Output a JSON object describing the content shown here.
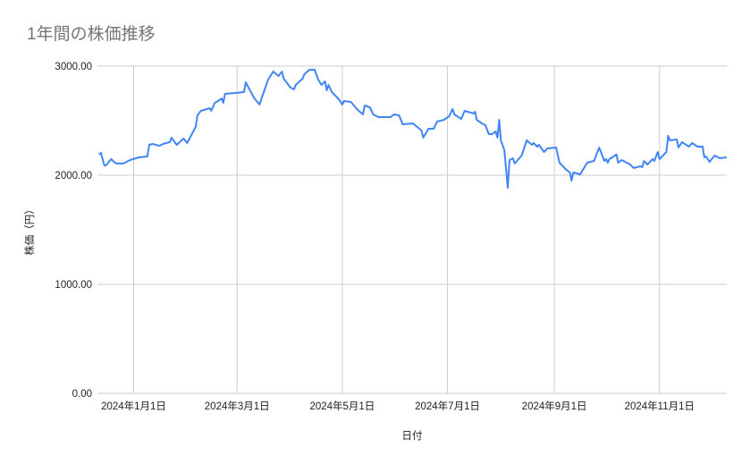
{
  "chart_data": {
    "type": "line",
    "title": "1年間の株価推移",
    "xlabel": "日付",
    "ylabel": "株価（円）",
    "xlim": [
      "2023-12-11",
      "2024-12-10"
    ],
    "ylim": [
      0,
      3000
    ],
    "grid": true,
    "legend": "none",
    "line_color": "#4285f4",
    "y_ticks": [
      {
        "value": 0,
        "label": "0.00"
      },
      {
        "value": 1000,
        "label": "1000.00"
      },
      {
        "value": 2000,
        "label": "2000.00"
      },
      {
        "value": 3000,
        "label": "3000.00"
      }
    ],
    "x_ticks": [
      {
        "value": "2024-01-01",
        "label": "2024年1月1日"
      },
      {
        "value": "2024-03-01",
        "label": "2024年3月1日"
      },
      {
        "value": "2024-05-01",
        "label": "2024年5月1日"
      },
      {
        "value": "2024-07-01",
        "label": "2024年7月1日"
      },
      {
        "value": "2024-09-01",
        "label": "2024年9月1日"
      },
      {
        "value": "2024-11-01",
        "label": "2024年11月1日"
      }
    ],
    "series": [
      {
        "points": [
          [
            "2023-12-12",
            2189
          ],
          [
            "2023-12-13",
            2205
          ],
          [
            "2023-12-15",
            2090
          ],
          [
            "2023-12-16",
            2090
          ],
          [
            "2023-12-19",
            2148
          ],
          [
            "2023-12-20",
            2131
          ],
          [
            "2023-12-22",
            2107
          ],
          [
            "2023-12-26",
            2107
          ],
          [
            "2023-12-27",
            2115
          ],
          [
            "2023-12-30",
            2139
          ],
          [
            "2024-01-04",
            2164
          ],
          [
            "2024-01-09",
            2172
          ],
          [
            "2024-01-10",
            2279
          ],
          [
            "2024-01-12",
            2287
          ],
          [
            "2024-01-16",
            2270
          ],
          [
            "2024-01-18",
            2287
          ],
          [
            "2024-01-22",
            2303
          ],
          [
            "2024-01-23",
            2344
          ],
          [
            "2024-01-26",
            2279
          ],
          [
            "2024-01-30",
            2336
          ],
          [
            "2024-02-01",
            2295
          ],
          [
            "2024-02-06",
            2443
          ],
          [
            "2024-02-07",
            2549
          ],
          [
            "2024-02-09",
            2590
          ],
          [
            "2024-02-14",
            2615
          ],
          [
            "2024-02-15",
            2590
          ],
          [
            "2024-02-17",
            2664
          ],
          [
            "2024-02-19",
            2680
          ],
          [
            "2024-02-21",
            2705
          ],
          [
            "2024-02-22",
            2664
          ],
          [
            "2024-02-23",
            2746
          ],
          [
            "2024-02-29",
            2754
          ],
          [
            "2024-03-05",
            2762
          ],
          [
            "2024-03-06",
            2852
          ],
          [
            "2024-03-11",
            2705
          ],
          [
            "2024-03-14",
            2648
          ],
          [
            "2024-03-17",
            2787
          ],
          [
            "2024-03-19",
            2877
          ],
          [
            "2024-03-22",
            2951
          ],
          [
            "2024-03-25",
            2910
          ],
          [
            "2024-03-27",
            2951
          ],
          [
            "2024-03-28",
            2885
          ],
          [
            "2024-04-01",
            2803
          ],
          [
            "2024-04-03",
            2787
          ],
          [
            "2024-04-04",
            2828
          ],
          [
            "2024-04-08",
            2885
          ],
          [
            "2024-04-09",
            2926
          ],
          [
            "2024-04-12",
            2967
          ],
          [
            "2024-04-15",
            2967
          ],
          [
            "2024-04-17",
            2877
          ],
          [
            "2024-04-19",
            2828
          ],
          [
            "2024-04-21",
            2861
          ],
          [
            "2024-04-22",
            2779
          ],
          [
            "2024-04-23",
            2828
          ],
          [
            "2024-04-25",
            2762
          ],
          [
            "2024-04-29",
            2697
          ],
          [
            "2024-05-01",
            2648
          ],
          [
            "2024-05-02",
            2680
          ],
          [
            "2024-05-06",
            2672
          ],
          [
            "2024-05-10",
            2598
          ],
          [
            "2024-05-13",
            2557
          ],
          [
            "2024-05-14",
            2639
          ],
          [
            "2024-05-17",
            2623
          ],
          [
            "2024-05-19",
            2557
          ],
          [
            "2024-05-22",
            2533
          ],
          [
            "2024-05-29",
            2533
          ],
          [
            "2024-05-31",
            2557
          ],
          [
            "2024-06-03",
            2549
          ],
          [
            "2024-06-05",
            2467
          ],
          [
            "2024-06-11",
            2475
          ],
          [
            "2024-06-16",
            2410
          ],
          [
            "2024-06-17",
            2344
          ],
          [
            "2024-06-20",
            2426
          ],
          [
            "2024-06-23",
            2426
          ],
          [
            "2024-06-25",
            2492
          ],
          [
            "2024-06-29",
            2508
          ],
          [
            "2024-07-02",
            2541
          ],
          [
            "2024-07-04",
            2607
          ],
          [
            "2024-07-05",
            2557
          ],
          [
            "2024-07-09",
            2516
          ],
          [
            "2024-07-11",
            2590
          ],
          [
            "2024-07-16",
            2566
          ],
          [
            "2024-07-17",
            2582
          ],
          [
            "2024-07-18",
            2508
          ],
          [
            "2024-07-21",
            2475
          ],
          [
            "2024-07-23",
            2459
          ],
          [
            "2024-07-25",
            2377
          ],
          [
            "2024-07-27",
            2377
          ],
          [
            "2024-07-29",
            2402
          ],
          [
            "2024-07-30",
            2344
          ],
          [
            "2024-07-31",
            2508
          ],
          [
            "2024-08-01",
            2320
          ],
          [
            "2024-08-03",
            2230
          ],
          [
            "2024-08-05",
            1885
          ],
          [
            "2024-08-06",
            2139
          ],
          [
            "2024-08-08",
            2156
          ],
          [
            "2024-08-09",
            2107
          ],
          [
            "2024-08-13",
            2180
          ],
          [
            "2024-08-16",
            2320
          ],
          [
            "2024-08-19",
            2279
          ],
          [
            "2024-08-20",
            2295
          ],
          [
            "2024-08-22",
            2262
          ],
          [
            "2024-08-23",
            2279
          ],
          [
            "2024-08-26",
            2213
          ],
          [
            "2024-08-28",
            2246
          ],
          [
            "2024-09-02",
            2254
          ],
          [
            "2024-09-04",
            2115
          ],
          [
            "2024-09-08",
            2049
          ],
          [
            "2024-09-10",
            2025
          ],
          [
            "2024-09-11",
            1951
          ],
          [
            "2024-09-12",
            2025
          ],
          [
            "2024-09-16",
            2008
          ],
          [
            "2024-09-20",
            2115
          ],
          [
            "2024-09-24",
            2131
          ],
          [
            "2024-09-27",
            2254
          ],
          [
            "2024-09-30",
            2131
          ],
          [
            "2024-10-01",
            2148
          ],
          [
            "2024-10-02",
            2115
          ],
          [
            "2024-10-03",
            2148
          ],
          [
            "2024-10-07",
            2189
          ],
          [
            "2024-10-08",
            2115
          ],
          [
            "2024-10-10",
            2139
          ],
          [
            "2024-10-15",
            2098
          ],
          [
            "2024-10-17",
            2066
          ],
          [
            "2024-10-21",
            2082
          ],
          [
            "2024-10-22",
            2074
          ],
          [
            "2024-10-23",
            2131
          ],
          [
            "2024-10-25",
            2098
          ],
          [
            "2024-10-28",
            2148
          ],
          [
            "2024-10-29",
            2131
          ],
          [
            "2024-10-31",
            2213
          ],
          [
            "2024-11-01",
            2148
          ],
          [
            "2024-11-05",
            2213
          ],
          [
            "2024-11-06",
            2361
          ],
          [
            "2024-11-07",
            2320
          ],
          [
            "2024-11-11",
            2328
          ],
          [
            "2024-11-12",
            2254
          ],
          [
            "2024-11-14",
            2303
          ],
          [
            "2024-11-18",
            2262
          ],
          [
            "2024-11-20",
            2295
          ],
          [
            "2024-11-23",
            2262
          ],
          [
            "2024-11-26",
            2262
          ],
          [
            "2024-11-27",
            2164
          ],
          [
            "2024-11-28",
            2172
          ],
          [
            "2024-11-30",
            2123
          ],
          [
            "2024-12-03",
            2180
          ],
          [
            "2024-12-06",
            2156
          ],
          [
            "2024-12-10",
            2164
          ]
        ]
      }
    ]
  }
}
